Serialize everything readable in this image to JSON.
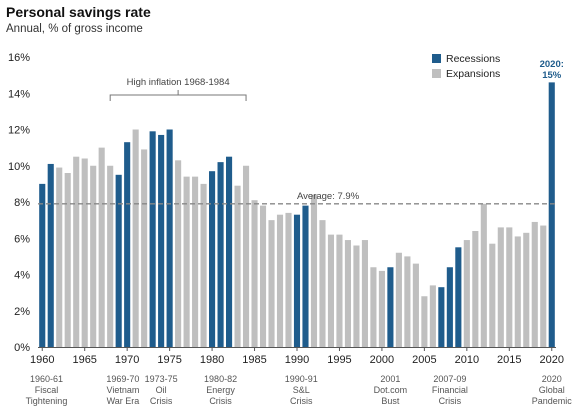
{
  "chart_data": {
    "type": "bar",
    "title": "Personal savings rate",
    "subtitle": "Annual, % of gross income",
    "x": [
      1960,
      1961,
      1962,
      1963,
      1964,
      1965,
      1966,
      1967,
      1968,
      1969,
      1970,
      1971,
      1972,
      1973,
      1974,
      1975,
      1976,
      1977,
      1978,
      1979,
      1980,
      1981,
      1982,
      1983,
      1984,
      1985,
      1986,
      1987,
      1988,
      1989,
      1990,
      1991,
      1992,
      1993,
      1994,
      1995,
      1996,
      1997,
      1998,
      1999,
      2000,
      2001,
      2002,
      2003,
      2004,
      2005,
      2006,
      2007,
      2008,
      2009,
      2010,
      2011,
      2012,
      2013,
      2014,
      2015,
      2016,
      2017,
      2018,
      2019,
      2020
    ],
    "values": [
      9.0,
      10.1,
      9.9,
      9.6,
      10.5,
      10.4,
      10.0,
      11.0,
      10.0,
      9.5,
      11.3,
      12.0,
      10.9,
      11.9,
      11.7,
      12.0,
      10.3,
      9.4,
      9.4,
      9.0,
      9.7,
      10.2,
      10.5,
      8.9,
      10.0,
      8.1,
      7.8,
      7.0,
      7.3,
      7.4,
      7.3,
      7.8,
      8.4,
      7.0,
      6.2,
      6.2,
      5.9,
      5.6,
      5.9,
      4.4,
      4.2,
      4.4,
      5.2,
      5.0,
      4.6,
      2.8,
      3.4,
      3.3,
      4.4,
      5.5,
      5.9,
      6.4,
      7.9,
      5.7,
      6.6,
      6.6,
      6.1,
      6.3,
      6.9,
      6.7,
      14.6
    ],
    "recession_years": [
      1960,
      1961,
      1969,
      1970,
      1973,
      1974,
      1975,
      1980,
      1981,
      1982,
      1990,
      1991,
      2001,
      2007,
      2008,
      2009,
      2020
    ],
    "ylim": [
      0,
      16
    ],
    "yticks": [
      0,
      2,
      4,
      6,
      8,
      10,
      12,
      14,
      16
    ],
    "ytick_labels": [
      "0%",
      "2%",
      "4%",
      "6%",
      "8%",
      "10%",
      "12%",
      "14%",
      "16%"
    ],
    "xticks": [
      1960,
      1965,
      1970,
      1975,
      1980,
      1985,
      1990,
      1995,
      2000,
      2005,
      2010,
      2015,
      2020
    ],
    "average": {
      "value": 7.9,
      "label": "Average: 7.9%"
    },
    "legend": {
      "placement": "top-right",
      "items": [
        {
          "label": "Recessions",
          "color": "#1f5c8c"
        },
        {
          "label": "Expansions",
          "color": "#bfbfbf"
        }
      ]
    },
    "bracket": {
      "label": "High inflation 1968-1984",
      "from": 1968,
      "to": 1984
    },
    "recession_notes": [
      {
        "year": 1960.5,
        "lines": [
          "1960-61",
          "Fiscal",
          "Tightening"
        ]
      },
      {
        "year": 1969.5,
        "lines": [
          "1969-70",
          "Vietnam",
          "War Era"
        ]
      },
      {
        "year": 1974,
        "lines": [
          "1973-75",
          "Oil",
          "Crisis"
        ]
      },
      {
        "year": 1981,
        "lines": [
          "1980-82",
          "Energy",
          "Crisis"
        ]
      },
      {
        "year": 1990.5,
        "lines": [
          "1990-91",
          "S&L",
          "Crisis"
        ]
      },
      {
        "year": 2001,
        "lines": [
          "2001",
          "Dot.com",
          "Bust"
        ]
      },
      {
        "year": 2008,
        "lines": [
          "2007-09",
          "Financial",
          "Crisis"
        ]
      },
      {
        "year": 2020,
        "lines": [
          "2020",
          "Global",
          "Pandemic"
        ]
      }
    ],
    "callout": {
      "year": 2020,
      "lines": [
        "2020:",
        "15%"
      ],
      "color": "#1f5c8c"
    },
    "grid": false,
    "colors": {
      "recession": "#1f5c8c",
      "expansion": "#bfbfbf",
      "average_line": "#888888"
    }
  }
}
